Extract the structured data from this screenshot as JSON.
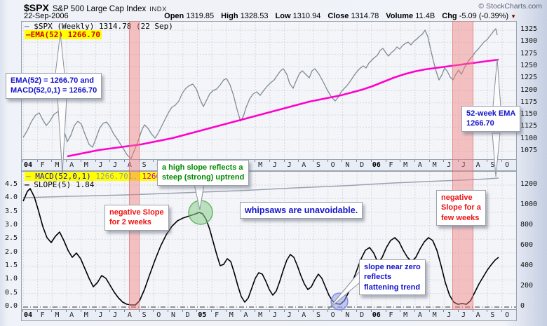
{
  "header": {
    "symbol": "$SPX",
    "index_name": "S&P 500 Large Cap Index",
    "exchange": "INDX",
    "date": "22-Sep-2006",
    "copyright": "© StockCharts.com",
    "quote": {
      "open_label": "Open",
      "open": "1319.85",
      "high_label": "High",
      "high": "1328.53",
      "low_label": "Low",
      "low": "1310.94",
      "close_label": "Close",
      "close": "1314.78",
      "volume_label": "Volume",
      "volume": "11.4B",
      "chg_label": "Chg",
      "chg": "-5.09 (-0.39%)",
      "chg_arrow_icon": "▼"
    }
  },
  "legends": {
    "price_row1_swatch": "—",
    "price_row1": " $SPX (Weekly) 1314.78 (22 Sep)",
    "price_row2_swatch": "—",
    "price_row2": "EMA(52) 1266.70",
    "slope_row1_swatch": "—",
    "slope_row1_name": "MACD(52,0,1)",
    "slope_row1_val1": " 1266.701,",
    "slope_row1_val2": " 1266.70",
    "slope_row2_swatch": "—",
    "slope_row2": " SLOPE(5) 1.84"
  },
  "axes": {
    "months": [
      {
        "l": "04",
        "yr": true
      },
      {
        "l": "F"
      },
      {
        "l": "M"
      },
      {
        "l": "A"
      },
      {
        "l": "M"
      },
      {
        "l": "J"
      },
      {
        "l": "J"
      },
      {
        "l": "A"
      },
      {
        "l": "S"
      },
      {
        "l": "O"
      },
      {
        "l": "N"
      },
      {
        "l": "D"
      },
      {
        "l": "05",
        "yr": true
      },
      {
        "l": "F"
      },
      {
        "l": "M"
      },
      {
        "l": "A"
      },
      {
        "l": "M"
      },
      {
        "l": "J"
      },
      {
        "l": "J"
      },
      {
        "l": "A"
      },
      {
        "l": "S"
      },
      {
        "l": "O"
      },
      {
        "l": "N"
      },
      {
        "l": "D"
      },
      {
        "l": "06",
        "yr": true
      },
      {
        "l": "F"
      },
      {
        "l": "M"
      },
      {
        "l": "A"
      },
      {
        "l": "M"
      },
      {
        "l": "J"
      },
      {
        "l": "J"
      },
      {
        "l": "A"
      },
      {
        "l": "S"
      },
      {
        "l": "O"
      }
    ],
    "price_right": [
      "1325",
      "1300",
      "1275",
      "1250",
      "1225",
      "1200",
      "1175",
      "1150",
      "1125",
      "1100",
      "1075"
    ],
    "slope_left": [
      "4.5",
      "4.0",
      "3.5",
      "3.0",
      "2.5",
      "2.0",
      "1.5",
      "1.0",
      "0.5",
      "0.0"
    ],
    "macd_right": [
      "1200",
      "1000",
      "800",
      "600",
      "400",
      "200",
      "0"
    ]
  },
  "annotations": {
    "ema_macd": {
      "line1": "EMA(52) = 1266.70 and",
      "line2": "MACD(52,0,1) = 1266.70"
    },
    "wk52": {
      "line1": "52-week EMA",
      "line2": "1266.70"
    },
    "neg2": {
      "line1": "negative Slope",
      "line2": "for 2 weeks"
    },
    "whipsaw": {
      "line1": "whipsaws are unavoidable."
    },
    "negfew": {
      "line1": "negative",
      "line2": "Slope for a",
      "line3": "few weeks"
    },
    "flatten": {
      "line1": "slope near zero",
      "line2": "reflects",
      "line3": "flattening trend"
    },
    "highslope": {
      "line1": "a high slope reflects a",
      "line2": "steep (strong) uptrend"
    }
  },
  "colors": {
    "magenta": "#ff00cc",
    "price_gray": "#7f8b96",
    "macd_gray": "#98a2b2",
    "red_text": "#ee1111",
    "blue_text": "#1313cc",
    "green_text": "#008a00",
    "legend_red": "#cc0000",
    "legend_gray_val": "#9aa0aa",
    "legend_magenta_val": "#cc00cc",
    "yellow": "#ffff00",
    "band_pink": "rgba(242,128,128,0.45)",
    "chg_arrow": "#7a0000"
  },
  "lines": {
    "price": "2,165 8,155 14,142 20,133 25,130 30,140 35,148 40,142 46,132 52,128 56,136 60,155 65,171 70,162 75,148 80,142 85,146 90,160 96,175 101,179 106,166 111,152 116,145 121,143 126,150 131,160 136,167 141,175 146,183 151,191 156,195 160,185 166,170 171,155 175,147 180,152 185,160 190,166 194,160 199,150 204,140 209,130 214,122 219,119 224,113 229,102 234,95 239,91 244,89 249,96 254,110 259,121 263,113 268,103 273,98 278,96 283,90 288,83 292,81 297,90 302,105 307,125 312,142 316,135 320,122 325,110 330,103 335,100 340,105 345,98 350,92 355,87 360,83 364,77 369,70 373,67 378,75 382,88 387,95 391,85 396,74 400,70 405,75 410,80 414,70 418,67 424,75 430,86 436,98 442,108 447,113 451,108 455,101 459,96 463,92 467,87 471,81 475,75 479,70 483,66 487,63 491,66 495,59 499,55 503,51 507,48 511,41 515,38 519,44 523,49 527,44 531,41 535,36 539,39 543,34 547,31 551,29 555,33 559,28 563,25 567,21 571,18 575,12 579,21 583,39 587,56 591,71 595,83 599,76 603,66 607,71 611,79 615,83 619,75 623,69 627,75 631,66 635,59 639,53 643,49 647,43 651,39 655,34 659,29 663,26 667,21 671,16 673,13 676,10 678,19",
    "ema": "65,192 80,189 95,186 110,183 125,181 140,179 155,177 170,175 185,172 200,169 215,166 230,162 245,158 260,154 275,150 290,146 305,142 320,138 335,134 350,130 365,126 380,122 395,118 410,114 425,111 440,108 455,105 470,101 485,97 500,92 515,86 530,80 545,75 560,71 575,68 590,66 605,64 620,62 635,60 650,58 665,56 680,54",
    "macd": "2,37 70,35 150,33 230,30 310,27 390,23 460,20 530,16 600,13 650,11 680,9",
    "slope": "2,42 8,28 12,24 18,36 24,56 30,78 36,94 42,101 48,92 54,86 60,98 66,112 72,122 78,116 84,124 90,138 96,152 102,164 108,158 114,148 120,152 126,162 132,172 138,180 144,186 150,189 156,190 162,190 168,184 175,168 182,148 190,126 198,106 206,90 214,78 222,70 230,66 236,64 242,62 248,60 253,58 258,60 263,68 268,82 273,100 278,118 283,134 288,132 293,124 298,128 303,144 308,162 313,178 318,186 323,180 328,166 333,152 338,144 343,146 348,156 353,168 358,176 363,170 368,156 373,140 378,126 383,118 388,122 393,134 398,148 403,160 408,168 413,164 418,154 423,146 428,152 433,164 438,176 443,184 448,188 454,189 460,184 466,172 472,156 478,140 484,124 490,112 496,108 502,116 508,130 514,122 520,108 526,98 532,94 538,100 544,112 550,122 556,128 562,122 568,110 574,100 580,94 586,98 592,112 598,134 604,158 610,176 616,186 622,189 628,188 634,189 640,184 646,172 652,160 658,150 664,140 670,132 675,126 680,122"
  },
  "chart_data": [
    {
      "type": "line",
      "title": "$SPX (Weekly) price panel",
      "x": [
        "2004-01",
        "2004-02",
        "2004-03",
        "2004-04",
        "2004-05",
        "2004-06",
        "2004-07",
        "2004-08",
        "2004-09",
        "2004-10",
        "2004-11",
        "2004-12",
        "2005-01",
        "2005-02",
        "2005-03",
        "2005-04",
        "2005-05",
        "2005-06",
        "2005-07",
        "2005-08",
        "2005-09",
        "2005-10",
        "2005-11",
        "2005-12",
        "2006-01",
        "2006-02",
        "2006-03",
        "2006-04",
        "2006-05",
        "2006-06",
        "2006-07",
        "2006-08",
        "2006-09"
      ],
      "series": [
        {
          "name": "$SPX weekly close (approx)",
          "values": [
            1131,
            1145,
            1126,
            1107,
            1121,
            1141,
            1102,
            1064,
            1115,
            1130,
            1174,
            1212,
            1181,
            1204,
            1181,
            1157,
            1192,
            1191,
            1234,
            1220,
            1229,
            1180,
            1249,
            1248,
            1280,
            1281,
            1295,
            1311,
            1326,
            1224,
            1277,
            1304,
            1314.78
          ]
        },
        {
          "name": "EMA(52) (approx)",
          "values": [
            null,
            null,
            null,
            1065,
            1068,
            1072,
            1077,
            1082,
            1088,
            1094,
            1101,
            1108,
            1115,
            1122,
            1129,
            1136,
            1143,
            1150,
            1157,
            1164,
            1171,
            1178,
            1185,
            1192,
            1200,
            1209,
            1218,
            1227,
            1235,
            1242,
            1250,
            1258,
            1266.7
          ]
        }
      ],
      "ylabel": "",
      "ylim": [
        1052,
        1342
      ],
      "yticks": [
        1325,
        1300,
        1275,
        1250,
        1225,
        1200,
        1175,
        1150,
        1125,
        1100,
        1075
      ],
      "grid": true,
      "legend_position": "top-left",
      "highlight_bands_x": [
        "2004-08/2004-09",
        "2006-06/2006-07"
      ]
    },
    {
      "type": "line",
      "title": "MACD(52,0,1) and SLOPE(5) panel",
      "x": [
        "2004-01",
        "2004-02",
        "2004-03",
        "2004-04",
        "2004-05",
        "2004-06",
        "2004-07",
        "2004-08",
        "2004-09",
        "2004-10",
        "2004-11",
        "2004-12",
        "2005-01",
        "2005-02",
        "2005-03",
        "2005-04",
        "2005-05",
        "2005-06",
        "2005-07",
        "2005-08",
        "2005-09",
        "2005-10",
        "2005-11",
        "2005-12",
        "2006-01",
        "2006-02",
        "2006-03",
        "2006-04",
        "2006-05",
        "2006-06",
        "2006-07",
        "2006-08",
        "2006-09"
      ],
      "series": [
        {
          "name": "MACD(52,0,1) right axis (approx)",
          "values": [
            1080,
            1086,
            1092,
            1098,
            1104,
            1110,
            1116,
            1122,
            1128,
            1134,
            1141,
            1148,
            1155,
            1162,
            1169,
            1176,
            1183,
            1190,
            1197,
            1204,
            1211,
            1218,
            1225,
            1232,
            1239,
            1245,
            1250,
            1255,
            1259,
            1262,
            1264,
            1265.5,
            1266.701
          ]
        },
        {
          "name": "SLOPE(5) left axis (approx)",
          "values": [
            3.9,
            2.8,
            2.3,
            1.8,
            1.5,
            1.2,
            0.8,
            0.1,
            0.3,
            1.5,
            2.8,
            3.3,
            3.5,
            2.5,
            1.6,
            0.9,
            1.8,
            1.3,
            2.3,
            1.6,
            1.3,
            0.3,
            1.9,
            2.2,
            2.4,
            1.7,
            2.3,
            2.6,
            1.9,
            0.2,
            0.1,
            1.1,
            1.84
          ]
        }
      ],
      "ylim_left": [
        0,
        4.7
      ],
      "yticks_left": [
        4.5,
        4.0,
        3.5,
        3.0,
        2.5,
        2.0,
        1.5,
        1.0,
        0.5,
        0.0
      ],
      "ylim_right": [
        0,
        1345
      ],
      "yticks_right": [
        1200,
        1000,
        800,
        600,
        400,
        200,
        0
      ],
      "grid": true,
      "zero_line": "dash-dot"
    }
  ]
}
